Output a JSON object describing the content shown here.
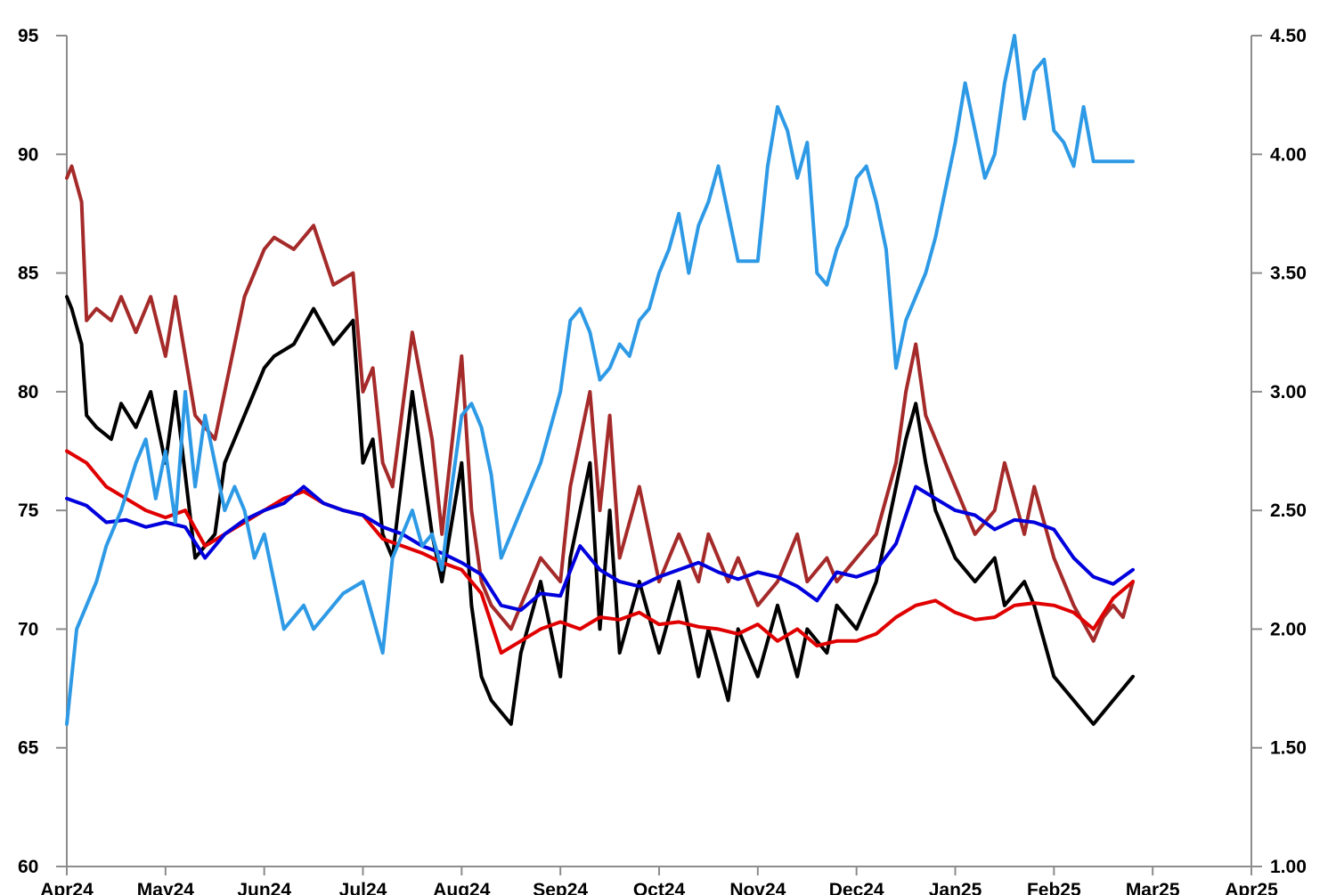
{
  "chart_data": {
    "type": "line",
    "title": "",
    "xlabel": "",
    "ylabel": "",
    "y2label": "",
    "grid": false,
    "legend": "none",
    "x_ticks": [
      "Apr24",
      "May24",
      "Jun24",
      "Jul24",
      "Aug24",
      "Sep24",
      "Oct24",
      "Nov24",
      "Dec24",
      "Jan25",
      "Feb25",
      "Mar25",
      "Apr25"
    ],
    "x_range": [
      "Apr24",
      "Apr25"
    ],
    "ylim": [
      60,
      95
    ],
    "y_ticks": [
      "60",
      "65",
      "70",
      "75",
      "80",
      "85",
      "90",
      "95"
    ],
    "y2lim": [
      1.0,
      4.5
    ],
    "y2_ticks": [
      "1.00",
      "1.50",
      "2.00",
      "2.50",
      "3.00",
      "3.50",
      "4.00",
      "4.50"
    ],
    "series": [
      {
        "color": "#a52a2a",
        "axis": "left",
        "x": [
          0,
          0.05,
          0.15,
          0.2,
          0.3,
          0.45,
          0.55,
          0.7,
          0.85,
          1.0,
          1.1,
          1.3,
          1.5,
          1.6,
          1.8,
          2.0,
          2.1,
          2.3,
          2.5,
          2.7,
          2.9,
          3.0,
          3.1,
          3.2,
          3.3,
          3.5,
          3.7,
          3.8,
          4.0,
          4.1,
          4.2,
          4.3,
          4.5,
          4.6,
          4.8,
          5.0,
          5.1,
          5.3,
          5.4,
          5.5,
          5.6,
          5.8,
          6.0,
          6.2,
          6.4,
          6.5,
          6.7,
          6.8,
          7.0,
          7.2,
          7.4,
          7.5,
          7.7,
          7.8,
          8.0,
          8.2,
          8.4,
          8.5,
          8.6,
          8.7,
          8.8,
          9.0,
          9.2,
          9.4,
          9.5,
          9.7,
          9.8,
          10.0,
          10.2,
          10.4,
          10.5,
          10.6,
          10.7,
          10.8
        ],
        "values": [
          89,
          89.5,
          88,
          83,
          83.5,
          83,
          84,
          82.5,
          84,
          81.5,
          84,
          79,
          78,
          80,
          84,
          86,
          86.5,
          86,
          87,
          84.5,
          85,
          80,
          81,
          77,
          76,
          82.5,
          78,
          74,
          81.5,
          75,
          72,
          71,
          70,
          71,
          73,
          72,
          76,
          80,
          75,
          79,
          73,
          76,
          72,
          74,
          72,
          74,
          72,
          73,
          71,
          72,
          74,
          72,
          73,
          72,
          73,
          74,
          77,
          80,
          82,
          79,
          78,
          76,
          74,
          75,
          77,
          74,
          76,
          73,
          71,
          69.5,
          70.5,
          71,
          70.5,
          72
        ]
      },
      {
        "color": "#000000",
        "axis": "left",
        "x": [
          0,
          0.05,
          0.15,
          0.2,
          0.3,
          0.45,
          0.55,
          0.7,
          0.85,
          1.0,
          1.1,
          1.3,
          1.5,
          1.6,
          1.8,
          2.0,
          2.1,
          2.3,
          2.5,
          2.7,
          2.9,
          3.0,
          3.1,
          3.2,
          3.3,
          3.5,
          3.7,
          3.8,
          4.0,
          4.1,
          4.2,
          4.3,
          4.5,
          4.6,
          4.8,
          5.0,
          5.1,
          5.3,
          5.4,
          5.5,
          5.6,
          5.8,
          6.0,
          6.2,
          6.4,
          6.5,
          6.7,
          6.8,
          7.0,
          7.2,
          7.4,
          7.5,
          7.7,
          7.8,
          8.0,
          8.2,
          8.4,
          8.5,
          8.6,
          8.7,
          8.8,
          9.0,
          9.2,
          9.4,
          9.5,
          9.7,
          9.8,
          10.0,
          10.2,
          10.4,
          10.5,
          10.6,
          10.7,
          10.8
        ],
        "values": [
          84,
          83.5,
          82,
          79,
          78.5,
          78,
          79.5,
          78.5,
          80,
          77,
          80,
          73,
          74,
          77,
          79,
          81,
          81.5,
          82,
          83.5,
          82,
          83,
          77,
          78,
          74,
          73,
          80,
          74,
          72,
          77,
          71,
          68,
          67,
          66,
          69,
          72,
          68,
          73,
          77,
          70,
          75,
          69,
          72,
          69,
          72,
          68,
          70,
          67,
          70,
          68,
          71,
          68,
          70,
          69,
          71,
          70,
          72,
          76,
          78,
          79.5,
          77,
          75,
          73,
          72,
          73,
          71,
          72,
          71,
          68,
          67,
          66,
          66.5,
          67,
          67.5,
          68
        ]
      },
      {
        "color": "#e00000",
        "axis": "left",
        "x": [
          0,
          0.2,
          0.4,
          0.6,
          0.8,
          1.0,
          1.2,
          1.4,
          1.6,
          1.8,
          2.0,
          2.2,
          2.4,
          2.6,
          2.8,
          3.0,
          3.2,
          3.4,
          3.6,
          3.8,
          4.0,
          4.2,
          4.4,
          4.6,
          4.8,
          5.0,
          5.2,
          5.4,
          5.6,
          5.8,
          6.0,
          6.2,
          6.4,
          6.6,
          6.8,
          7.0,
          7.2,
          7.4,
          7.6,
          7.8,
          8.0,
          8.2,
          8.4,
          8.6,
          8.8,
          9.0,
          9.2,
          9.4,
          9.6,
          9.8,
          10.0,
          10.2,
          10.4,
          10.6,
          10.8
        ],
        "values": [
          77.5,
          77,
          76,
          75.5,
          75,
          74.7,
          75,
          73.5,
          74,
          74.5,
          75,
          75.5,
          75.8,
          75.3,
          75,
          74.8,
          73.8,
          73.5,
          73.2,
          72.8,
          72.5,
          71.5,
          69,
          69.5,
          70,
          70.3,
          70,
          70.5,
          70.4,
          70.7,
          70.2,
          70.3,
          70.1,
          70,
          69.8,
          70.2,
          69.5,
          70,
          69.3,
          69.5,
          69.5,
          69.8,
          70.5,
          71,
          71.2,
          70.7,
          70.4,
          70.5,
          71,
          71.1,
          71,
          70.7,
          70,
          71.3,
          72
        ]
      },
      {
        "color": "#0000dd",
        "axis": "left",
        "x": [
          0,
          0.2,
          0.4,
          0.6,
          0.8,
          1.0,
          1.2,
          1.4,
          1.6,
          1.8,
          2.0,
          2.2,
          2.4,
          2.6,
          2.8,
          3.0,
          3.2,
          3.4,
          3.6,
          3.8,
          4.0,
          4.2,
          4.4,
          4.6,
          4.8,
          5.0,
          5.2,
          5.4,
          5.6,
          5.8,
          6.0,
          6.2,
          6.4,
          6.6,
          6.8,
          7.0,
          7.2,
          7.4,
          7.6,
          7.8,
          8.0,
          8.2,
          8.4,
          8.6,
          8.8,
          9.0,
          9.2,
          9.4,
          9.6,
          9.8,
          10.0,
          10.2,
          10.4,
          10.6,
          10.8
        ],
        "values": [
          75.5,
          75.2,
          74.5,
          74.6,
          74.3,
          74.5,
          74.3,
          73,
          74,
          74.6,
          75,
          75.3,
          76,
          75.3,
          75,
          74.8,
          74.3,
          74,
          73.5,
          73.2,
          72.8,
          72.3,
          71,
          70.8,
          71.5,
          71.4,
          73.5,
          72.5,
          72,
          71.8,
          72.2,
          72.5,
          72.8,
          72.4,
          72.1,
          72.4,
          72.2,
          71.8,
          71.2,
          72.4,
          72.2,
          72.5,
          73.6,
          76,
          75.5,
          75,
          74.8,
          74.2,
          74.6,
          74.5,
          74.2,
          73,
          72.2,
          71.9,
          72.5
        ]
      },
      {
        "color": "#2e9ae6",
        "axis": "right",
        "x": [
          0,
          0.1,
          0.2,
          0.3,
          0.4,
          0.55,
          0.7,
          0.8,
          0.9,
          1.0,
          1.1,
          1.2,
          1.3,
          1.4,
          1.5,
          1.6,
          1.7,
          1.8,
          1.9,
          2.0,
          2.2,
          2.4,
          2.5,
          2.6,
          2.8,
          3.0,
          3.1,
          3.2,
          3.3,
          3.4,
          3.5,
          3.6,
          3.7,
          3.8,
          3.9,
          4.0,
          4.1,
          4.2,
          4.3,
          4.4,
          4.5,
          4.6,
          4.7,
          4.8,
          5.0,
          5.1,
          5.2,
          5.3,
          5.4,
          5.5,
          5.6,
          5.7,
          5.8,
          5.9,
          6.0,
          6.1,
          6.2,
          6.3,
          6.4,
          6.5,
          6.6,
          6.8,
          7.0,
          7.1,
          7.2,
          7.3,
          7.4,
          7.5,
          7.6,
          7.7,
          7.8,
          7.9,
          8.0,
          8.1,
          8.2,
          8.3,
          8.4,
          8.5,
          8.6,
          8.7,
          8.8,
          8.9,
          9.0,
          9.1,
          9.2,
          9.3,
          9.4,
          9.5,
          9.6,
          9.7,
          9.8,
          9.9,
          10.0,
          10.1,
          10.2,
          10.3,
          10.4,
          10.5,
          10.6,
          10.7,
          10.8
        ],
        "values": [
          1.6,
          2.0,
          2.1,
          2.2,
          2.35,
          2.5,
          2.7,
          2.8,
          2.55,
          2.75,
          2.45,
          3.0,
          2.6,
          2.9,
          2.7,
          2.5,
          2.6,
          2.5,
          2.3,
          2.4,
          2.0,
          2.1,
          2.0,
          2.05,
          2.15,
          2.2,
          2.05,
          1.9,
          2.3,
          2.4,
          2.5,
          2.35,
          2.4,
          2.25,
          2.6,
          2.9,
          2.95,
          2.85,
          2.65,
          2.3,
          2.4,
          2.5,
          2.6,
          2.7,
          3.0,
          3.3,
          3.35,
          3.25,
          3.05,
          3.1,
          3.2,
          3.15,
          3.3,
          3.35,
          3.5,
          3.6,
          3.75,
          3.5,
          3.7,
          3.8,
          3.95,
          3.55,
          3.55,
          3.95,
          4.2,
          4.1,
          3.9,
          4.05,
          3.5,
          3.45,
          3.6,
          3.7,
          3.9,
          3.95,
          3.8,
          3.6,
          3.1,
          3.3,
          3.4,
          3.5,
          3.65,
          3.85,
          4.05,
          4.3,
          4.1,
          3.9,
          4.0,
          4.3,
          4.5,
          4.15,
          4.35,
          4.4,
          4.1,
          4.05,
          3.95,
          4.2,
          3.97,
          3.97,
          3.97,
          3.97,
          3.97
        ]
      }
    ]
  }
}
